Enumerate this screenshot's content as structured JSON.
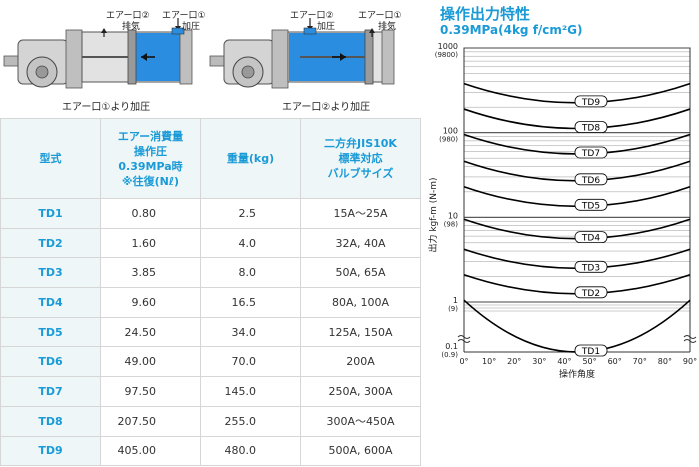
{
  "diagram": {
    "left": {
      "port2_label": "エアー口②",
      "exhaust_label": "排気",
      "port1_label": "エアー口①",
      "pressure_label": "加圧",
      "caption": "エアー口①より加圧"
    },
    "right": {
      "port2_label": "エアー口②",
      "pressure_label": "加圧",
      "port1_label": "エアー口①",
      "exhaust_label": "排気",
      "caption": "エアー口②より加圧"
    }
  },
  "table": {
    "headers": {
      "model": "型式",
      "air_line1": "エアー消費量",
      "air_line2": "操作圧",
      "air_line3": "0.39MPa時",
      "air_line4": "※往復(Nℓ)",
      "weight": "重量(kg)",
      "valve_line1": "二方弁JIS10K",
      "valve_line2": "標準対応",
      "valve_line3": "バルブサイズ"
    },
    "rows": [
      {
        "model": "TD1",
        "air": "0.80",
        "weight": "2.5",
        "valve": "15A〜25A"
      },
      {
        "model": "TD2",
        "air": "1.60",
        "weight": "4.0",
        "valve": "32A, 40A"
      },
      {
        "model": "TD3",
        "air": "3.85",
        "weight": "8.0",
        "valve": "50A, 65A"
      },
      {
        "model": "TD4",
        "air": "9.60",
        "weight": "16.5",
        "valve": "80A, 100A"
      },
      {
        "model": "TD5",
        "air": "24.50",
        "weight": "34.0",
        "valve": "125A, 150A"
      },
      {
        "model": "TD6",
        "air": "49.00",
        "weight": "70.0",
        "valve": "200A"
      },
      {
        "model": "TD7",
        "air": "97.50",
        "weight": "145.0",
        "valve": "250A, 300A"
      },
      {
        "model": "TD8",
        "air": "207.50",
        "weight": "255.0",
        "valve": "300A〜450A"
      },
      {
        "model": "TD9",
        "air": "405.00",
        "weight": "480.0",
        "valve": "500A, 600A"
      }
    ]
  },
  "chart_data": {
    "type": "line",
    "title": "操作出力特性",
    "subtitle": "0.39MPa(4kg f/cm²G)",
    "xlabel": "操作角度",
    "ylabel": "出力 kgf-m (N-m)",
    "x_ticks": [
      "0°",
      "10°",
      "20°",
      "30°",
      "40°",
      "50°",
      "60°",
      "70°",
      "80°",
      "90°"
    ],
    "y_ticks": [
      {
        "value": 1000,
        "label": "1000",
        "sub": "(9800)"
      },
      {
        "value": 100,
        "label": "100",
        "sub": "(980)"
      },
      {
        "value": 10,
        "label": "10",
        "sub": "(98)"
      },
      {
        "value": 1,
        "label": "1",
        "sub": "(9)"
      },
      {
        "value": 0.1,
        "label": "0.1",
        "sub": "(0.9)"
      }
    ],
    "y_scale": "log",
    "xlim": [
      0,
      90
    ],
    "ylim": [
      0.1,
      1000
    ],
    "series": [
      {
        "name": "TD1",
        "end": 1.05,
        "mid": 0.62
      },
      {
        "name": "TD2",
        "end": 2.1,
        "mid": 1.25
      },
      {
        "name": "TD3",
        "end": 4.2,
        "mid": 2.5
      },
      {
        "name": "TD4",
        "end": 9.5,
        "mid": 5.6
      },
      {
        "name": "TD5",
        "end": 23,
        "mid": 13.5
      },
      {
        "name": "TD6",
        "end": 46,
        "mid": 27
      },
      {
        "name": "TD7",
        "end": 95,
        "mid": 56
      },
      {
        "name": "TD8",
        "end": 190,
        "mid": 112
      },
      {
        "name": "TD9",
        "end": 380,
        "mid": 225
      }
    ]
  }
}
